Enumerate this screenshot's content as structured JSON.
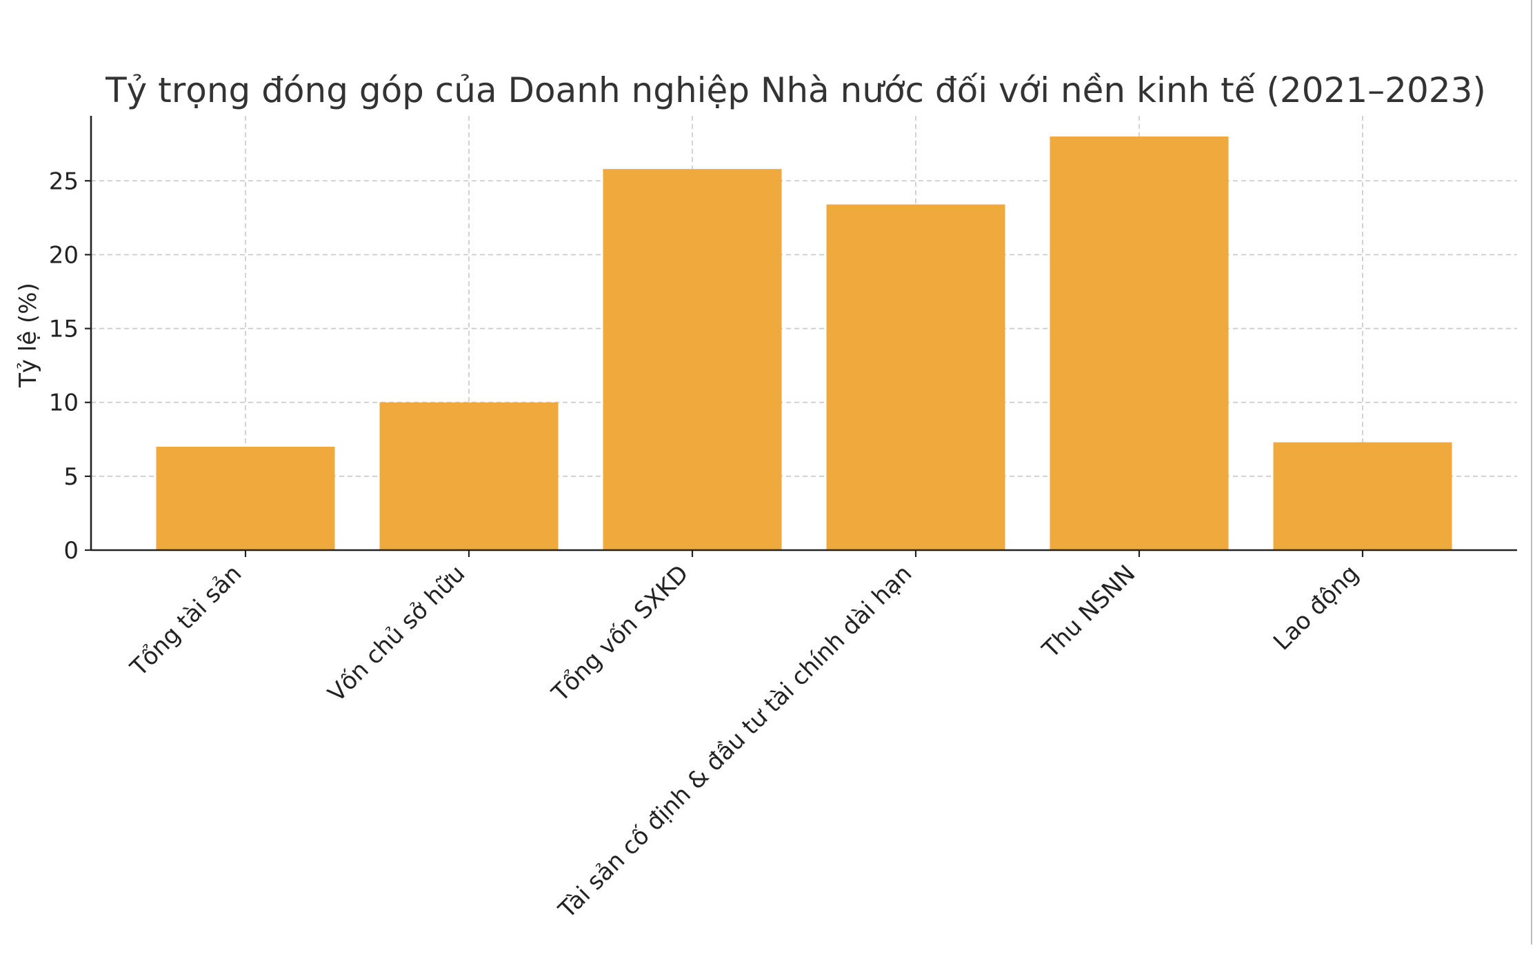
{
  "chart_data": {
    "type": "bar",
    "title": "Tỷ trọng đóng góp của Doanh nghiệp Nhà nước đối với nền kinh tế (2021–2023)",
    "xlabel": "",
    "ylabel": "Tỷ lệ (%)",
    "categories": [
      "Tổng tài sản",
      "Vốn chủ sở hữu",
      "Tổng vốn SXKD",
      "Tài sản cố định & đầu tư tài chính dài hạn",
      "Thu NSNN",
      "Lao động"
    ],
    "values": [
      7,
      10,
      25.8,
      23.4,
      28,
      7.3
    ],
    "ylim": [
      0,
      29.4
    ],
    "yticks": [
      "0",
      "5",
      "10",
      "15",
      "20",
      "25"
    ],
    "grid": true,
    "bar_color": "#F0A93C"
  }
}
